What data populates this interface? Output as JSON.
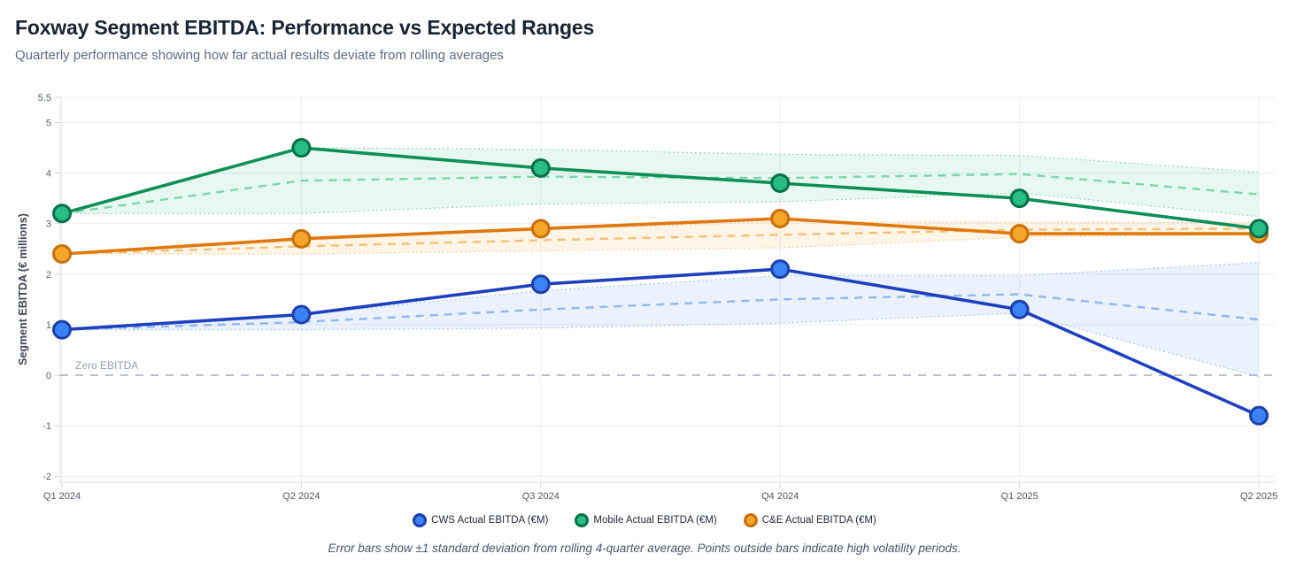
{
  "header": {
    "title": "Foxway Segment EBITDA: Performance vs Expected Ranges",
    "subtitle": "Quarterly performance showing how far actual results deviate from rolling averages"
  },
  "chart_data": {
    "type": "line",
    "categories": [
      "Q1 2024",
      "Q2 2024",
      "Q3 2024",
      "Q4 2024",
      "Q1 2025",
      "Q2 2025"
    ],
    "ylabel": "Segment EBITDA (€ millions)",
    "ylim": [
      -2,
      5.5
    ],
    "yticks": [
      5.5,
      5,
      4,
      3,
      2,
      1,
      0,
      -1,
      -2
    ],
    "grid": true,
    "legend_position": "bottom",
    "zero_line": {
      "value": 0,
      "label": "Zero EBITDA",
      "color": "#a2abb8",
      "label_color": "#97a1b0"
    },
    "series": [
      {
        "name": "CWS Actual EBITDA (€M)",
        "values": [
          0.9,
          1.2,
          1.8,
          2.1,
          1.3,
          -0.8
        ],
        "rolling_avg": [
          0.9,
          1.05,
          1.3,
          1.5,
          1.6,
          1.1
        ],
        "std_dev": [
          0,
          0.15,
          0.37,
          0.47,
          0.37,
          1.13
        ],
        "colors": {
          "line": "#1e40bf",
          "point": "#3b82f6",
          "point_border": "#1c3faa",
          "dashed": "#8fb7f2",
          "band": "#3b82f6",
          "band_edge": "#aac8f2"
        }
      },
      {
        "name": "Mobile Actual EBITDA (€M)",
        "values": [
          3.2,
          4.5,
          4.1,
          3.8,
          3.5,
          2.9
        ],
        "rolling_avg": [
          3.2,
          3.85,
          3.93,
          3.9,
          3.98,
          3.58
        ],
        "std_dev": [
          0,
          0.65,
          0.54,
          0.47,
          0.37,
          0.44
        ],
        "colors": {
          "line": "#0d8f58",
          "point": "#27bd84",
          "point_border": "#07704a",
          "dashed": "#7fd4ac",
          "band": "#10b981",
          "band_edge": "#8fd9ba"
        }
      },
      {
        "name": "C&E Actual EBITDA (€M)",
        "values": [
          2.4,
          2.7,
          2.9,
          3.1,
          2.8,
          2.8
        ],
        "rolling_avg": [
          2.4,
          2.55,
          2.67,
          2.78,
          2.88,
          2.9
        ],
        "std_dev": [
          0,
          0.15,
          0.21,
          0.26,
          0.15,
          0.12
        ],
        "colors": {
          "line": "#e0780e",
          "point": "#f4a62a",
          "point_border": "#c96f07",
          "dashed": "#f6bf77",
          "band": "#f59e0b",
          "band_edge": "#f3cf9e"
        }
      }
    ]
  },
  "footer": {
    "note": "Error bars show ±1 standard deviation from rolling 4-quarter average. Points outside bars indicate high volatility periods."
  }
}
